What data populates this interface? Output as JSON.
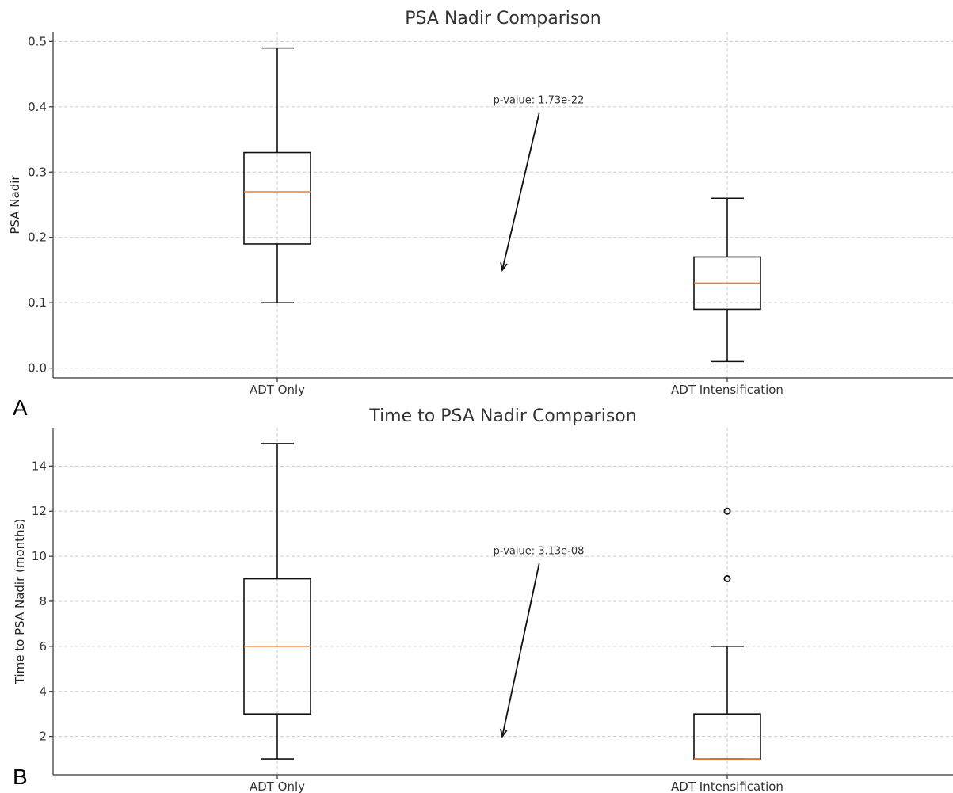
{
  "chart_data": [
    {
      "type": "box",
      "panel_label": "A",
      "title": "PSA Nadir Comparison",
      "xlabel": "",
      "ylabel": "PSA Nadir",
      "ylim": [
        -0.015,
        0.515
      ],
      "yticks": [
        0.0,
        0.1,
        0.2,
        0.3,
        0.4,
        0.5
      ],
      "ytick_labels": [
        "0.0",
        "0.1",
        "0.2",
        "0.3",
        "0.4",
        "0.5"
      ],
      "categories": [
        "ADT Only",
        "ADT Intensification"
      ],
      "boxes": [
        {
          "whisker_low": 0.1,
          "q1": 0.19,
          "median": 0.27,
          "q3": 0.33,
          "whisker_high": 0.49,
          "fliers": []
        },
        {
          "whisker_low": 0.01,
          "q1": 0.09,
          "median": 0.13,
          "q3": 0.17,
          "whisker_high": 0.26,
          "fliers": []
        }
      ],
      "annotation": {
        "text": "p-value: 1.73e-22",
        "text_xy": [
          1.48,
          0.405
        ],
        "arrow_to": [
          1.5,
          0.15
        ]
      },
      "grid": true
    },
    {
      "type": "box",
      "panel_label": "B",
      "title": "Time to PSA Nadir Comparison",
      "xlabel": "",
      "ylabel": "Time to PSA Nadir (months)",
      "ylim": [
        0.3,
        15.7
      ],
      "yticks": [
        2,
        4,
        6,
        8,
        10,
        12,
        14
      ],
      "ytick_labels": [
        "2",
        "4",
        "6",
        "8",
        "10",
        "12",
        "14"
      ],
      "categories": [
        "ADT Only",
        "ADT Intensification"
      ],
      "boxes": [
        {
          "whisker_low": 1,
          "q1": 3,
          "median": 6,
          "q3": 9,
          "whisker_high": 15,
          "fliers": []
        },
        {
          "whisker_low": 1,
          "q1": 1,
          "median": 1,
          "q3": 3,
          "whisker_high": 6,
          "fliers": [
            9,
            12
          ]
        }
      ],
      "annotation": {
        "text": "p-value: 3.13e-08",
        "text_xy": [
          1.48,
          10.1
        ],
        "arrow_to": [
          1.5,
          2
        ]
      },
      "grid": true
    }
  ]
}
